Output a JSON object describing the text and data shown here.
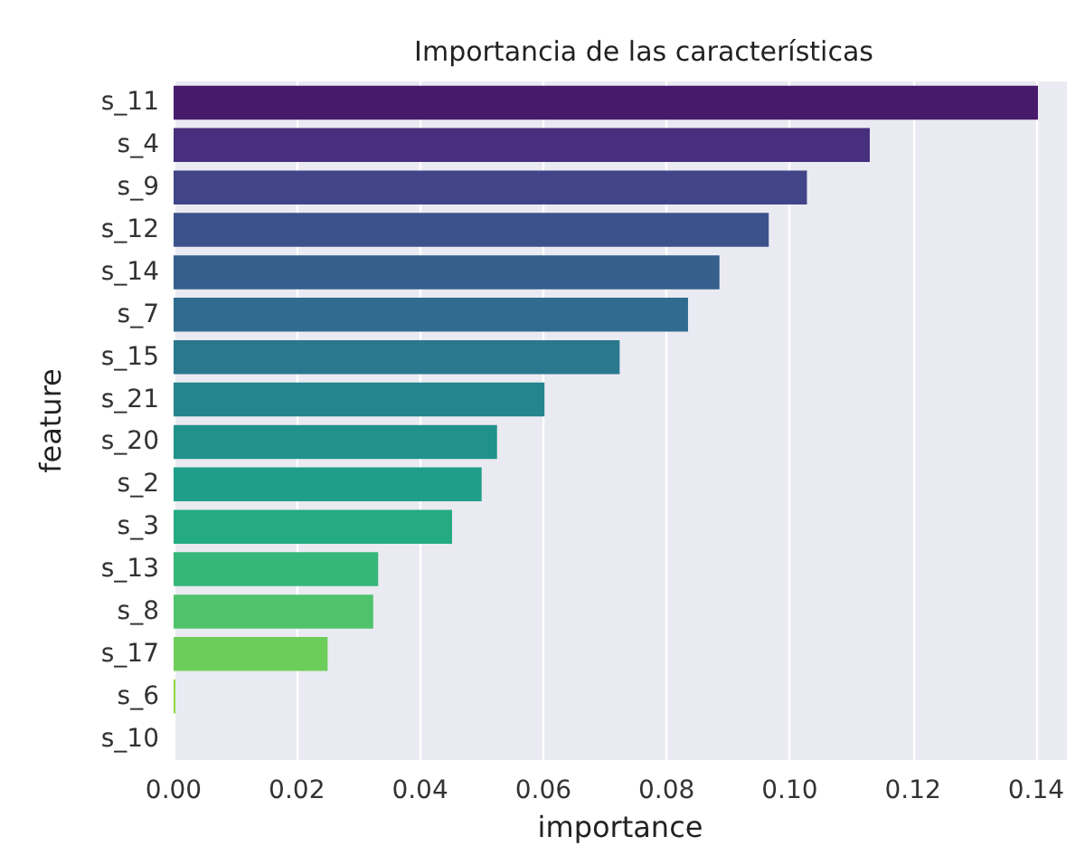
{
  "chart_data": {
    "type": "bar",
    "orientation": "horizontal",
    "title": "Importancia de las características",
    "xlabel": "importance",
    "ylabel": "feature",
    "categories": [
      "s_11",
      "s_4",
      "s_9",
      "s_12",
      "s_14",
      "s_7",
      "s_15",
      "s_21",
      "s_20",
      "s_2",
      "s_3",
      "s_13",
      "s_8",
      "s_17",
      "s_6",
      "s_10"
    ],
    "values": [
      0.1403,
      0.113,
      0.1028,
      0.0966,
      0.0886,
      0.0835,
      0.0724,
      0.0602,
      0.0525,
      0.05,
      0.0452,
      0.0332,
      0.0324,
      0.025,
      0.0003,
      0
    ],
    "colors": [
      "#481a6c",
      "#472f7d",
      "#414487",
      "#3b528b",
      "#355f8d",
      "#2f6c8e",
      "#2a788e",
      "#25848e",
      "#21918c",
      "#1f9e89",
      "#25ab82",
      "#35b779",
      "#4ec36b",
      "#6ccd5a",
      "#90d743",
      "#b5de2b"
    ],
    "xlim": [
      0,
      0.145
    ],
    "xticks": [
      {
        "value": 0,
        "label": "0.00"
      },
      {
        "value": 0.02,
        "label": "0.02"
      },
      {
        "value": 0.04,
        "label": "0.04"
      },
      {
        "value": 0.06,
        "label": "0.06"
      },
      {
        "value": 0.08,
        "label": "0.08"
      },
      {
        "value": 0.1,
        "label": "0.10"
      },
      {
        "value": 0.12,
        "label": "0.12"
      },
      {
        "value": 0.14,
        "label": "0.14"
      }
    ],
    "grid": "x"
  }
}
